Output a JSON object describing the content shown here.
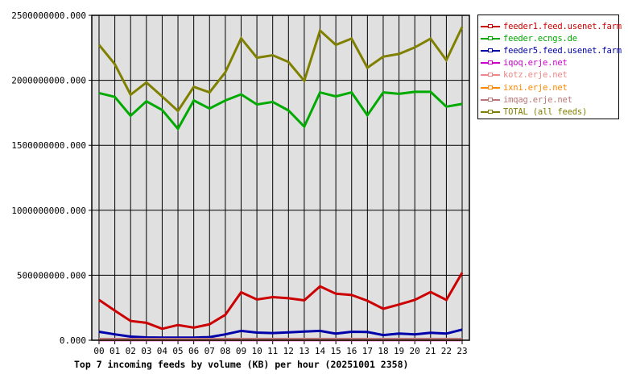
{
  "chart_data": {
    "type": "line",
    "title": "Top 7 incoming feeds by volume (KB) per hour (20251001 2358)",
    "xlabel": "",
    "ylabel": "",
    "ylim": [
      0,
      2500000000
    ],
    "yticks": [
      0,
      500000000,
      1000000000,
      1500000000,
      2000000000,
      2500000000
    ],
    "ytick_labels": [
      "0.000",
      "500000000.000",
      "1000000000.000",
      "1500000000.000",
      "2000000000.000",
      "2500000000.000"
    ],
    "grid": true,
    "legend_position": "right",
    "categories": [
      "00",
      "01",
      "02",
      "03",
      "04",
      "05",
      "06",
      "07",
      "08",
      "09",
      "10",
      "11",
      "12",
      "13",
      "14",
      "15",
      "16",
      "17",
      "18",
      "19",
      "20",
      "21",
      "22",
      "23"
    ],
    "series": [
      {
        "name": "feeder1.feed.usenet.farm",
        "color": "#cc0000",
        "values": [
          310000000,
          228000000,
          148000000,
          134000000,
          88000000,
          117000000,
          97000000,
          123000000,
          196000000,
          369000000,
          313000000,
          332000000,
          323000000,
          307000000,
          415000000,
          358000000,
          348000000,
          304000000,
          242000000,
          275000000,
          310000000,
          371000000,
          310000000,
          519000000
        ]
      },
      {
        "name": "feeder.ecngs.de",
        "color": "#00aa00",
        "values": [
          1902000000,
          1872000000,
          1727000000,
          1839000000,
          1772000000,
          1627000000,
          1845000000,
          1783000000,
          1845000000,
          1892000000,
          1814000000,
          1834000000,
          1768000000,
          1644000000,
          1907000000,
          1876000000,
          1907000000,
          1731000000,
          1907000000,
          1896000000,
          1911000000,
          1911000000,
          1797000000,
          1818000000
        ]
      },
      {
        "name": "feeder5.feed.usenet.farm",
        "color": "#0000aa",
        "values": [
          65000000,
          45000000,
          28000000,
          22000000,
          20000000,
          20000000,
          20000000,
          24000000,
          45000000,
          72000000,
          59000000,
          55000000,
          61000000,
          67000000,
          72000000,
          51000000,
          65000000,
          63000000,
          40000000,
          51000000,
          45000000,
          57000000,
          51000000,
          82000000
        ]
      },
      {
        "name": "iqoq.erje.net",
        "color": "#cc00cc",
        "values": [
          2000000,
          2000000,
          2000000,
          2000000,
          2000000,
          2000000,
          2000000,
          2000000,
          2000000,
          2000000,
          2000000,
          2000000,
          2000000,
          2000000,
          2000000,
          2000000,
          2000000,
          2000000,
          2000000,
          2000000,
          2000000,
          2000000,
          2000000,
          2000000
        ]
      },
      {
        "name": "kotz.erje.net",
        "color": "#ee8888",
        "values": [
          3000000,
          3000000,
          3000000,
          3000000,
          3000000,
          3000000,
          3000000,
          3000000,
          3000000,
          3000000,
          3000000,
          3000000,
          3000000,
          3000000,
          3000000,
          3000000,
          3000000,
          3000000,
          3000000,
          3000000,
          3000000,
          3000000,
          3000000,
          3000000
        ]
      },
      {
        "name": "ixni.erje.net",
        "color": "#ff8800",
        "values": [
          4000000,
          4000000,
          4000000,
          4000000,
          4000000,
          4000000,
          4000000,
          4000000,
          4000000,
          4000000,
          4000000,
          4000000,
          4000000,
          4000000,
          4000000,
          4000000,
          4000000,
          4000000,
          4000000,
          4000000,
          4000000,
          4000000,
          4000000,
          4000000
        ]
      },
      {
        "name": "imqag.erje.net",
        "color": "#bb7777",
        "values": [
          9000000,
          9000000,
          9000000,
          9000000,
          9000000,
          9000000,
          9000000,
          9000000,
          9000000,
          9000000,
          9000000,
          9000000,
          9000000,
          9000000,
          9000000,
          9000000,
          9000000,
          9000000,
          9000000,
          9000000,
          9000000,
          9000000,
          9000000,
          9000000
        ]
      },
      {
        "name": "TOTAL (all feeds)",
        "color": "#808000",
        "values": [
          2273000000,
          2124000000,
          1889000000,
          1983000000,
          1876000000,
          1764000000,
          1950000000,
          1907000000,
          2062000000,
          2323000000,
          2174000000,
          2193000000,
          2141000000,
          1996000000,
          2383000000,
          2273000000,
          2321000000,
          2097000000,
          2182000000,
          2203000000,
          2253000000,
          2321000000,
          2155000000,
          2410000000
        ]
      }
    ]
  },
  "legend": {
    "items": [
      {
        "label": "feeder1.feed.usenet.farm",
        "color": "#cc0000"
      },
      {
        "label": "feeder.ecngs.de",
        "color": "#00aa00"
      },
      {
        "label": "feeder5.feed.usenet.farm",
        "color": "#0000aa"
      },
      {
        "label": "iqoq.erje.net",
        "color": "#cc00cc"
      },
      {
        "label": "kotz.erje.net",
        "color": "#ee8888"
      },
      {
        "label": "ixni.erje.net",
        "color": "#ff8800"
      },
      {
        "label": "imqag.erje.net",
        "color": "#bb7777"
      },
      {
        "label": "TOTAL (all feeds)",
        "color": "#808000"
      }
    ]
  },
  "colors": {
    "plot_background": "#e0e0e0",
    "grid": "#000000",
    "page_background": "#ffffff"
  }
}
